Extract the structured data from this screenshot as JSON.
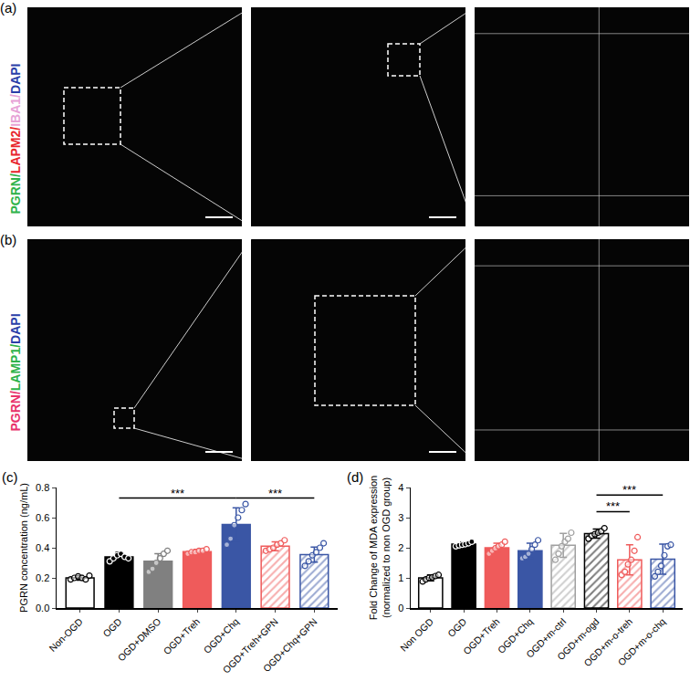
{
  "panels": [
    {
      "label": "(a)",
      "stain": [
        {
          "text": "PGRN/",
          "color": "#2fb34a"
        },
        {
          "text": "LAPM2/",
          "color": "#e8262b"
        },
        {
          "text": "IBA1/",
          "color": "#e7a3d6"
        },
        {
          "text": "DAPI",
          "color": "#2b3fa8"
        }
      ]
    },
    {
      "label": "(b)",
      "stain": [
        {
          "text": "PGRN/",
          "color": "#e8336b"
        },
        {
          "text": "LAMP1/",
          "color": "#2fb34a"
        },
        {
          "text": "DAPI",
          "color": "#2b3fa8"
        }
      ]
    }
  ],
  "chart_data": [
    {
      "type": "bar",
      "panel": "(c)",
      "y_label": [
        "PGRN concentration (ng/mL)"
      ],
      "categories": [
        "Non-OGD",
        "OGD",
        "OGD+DMSO",
        "OGD+Treh",
        "OGD+Chq",
        "OGD+Treh+GPN",
        "OGD+Chq+GPN"
      ],
      "values": [
        0.2,
        0.34,
        0.31,
        0.375,
        0.555,
        0.41,
        0.355
      ],
      "errors": [
        0.015,
        0.03,
        0.05,
        0.015,
        0.11,
        0.03,
        0.05
      ],
      "points": [
        [
          0.19,
          0.2,
          0.21,
          0.2,
          0.19,
          0.215
        ],
        [
          0.31,
          0.33,
          0.35,
          0.36,
          0.34,
          0.33
        ],
        [
          0.24,
          0.26,
          0.3,
          0.33,
          0.36,
          0.38
        ],
        [
          0.36,
          0.37,
          0.37,
          0.38,
          0.38,
          0.39
        ],
        [
          0.42,
          0.46,
          0.55,
          0.6,
          0.65,
          0.69
        ],
        [
          0.38,
          0.39,
          0.4,
          0.42,
          0.43,
          0.45
        ],
        [
          0.28,
          0.31,
          0.35,
          0.37,
          0.4,
          0.43
        ]
      ],
      "colors": [
        "#ffffff",
        "#000000",
        "#808080",
        "#ef5b5b",
        "#3a56a5",
        "#ef5b5b",
        "#3a56a5"
      ],
      "marker": [
        "solid",
        "solid",
        "solid",
        "solid",
        "solid",
        "hatched",
        "hatched"
      ],
      "ylim": [
        0,
        0.8
      ],
      "yticks": [
        {
          "value": 0,
          "label": "0.0"
        },
        {
          "value": 0.2,
          "label": "0.2"
        },
        {
          "value": 0.4,
          "label": "0.4"
        },
        {
          "value": 0.6,
          "label": "0.6"
        },
        {
          "value": 0.8,
          "label": "0.8"
        }
      ],
      "grid": false,
      "significance": [
        {
          "from": "OGD",
          "to": "OGD+Chq",
          "y": 0.73,
          "text": "***"
        },
        {
          "from": "OGD+Chq",
          "to": "OGD+Chq+GPN",
          "y": 0.73,
          "text": "***"
        }
      ]
    },
    {
      "type": "bar",
      "panel": "(d)",
      "y_label": [
        "Fold Change of MDA expression",
        "(normalized to non OGD group)"
      ],
      "categories": [
        "Non OGD",
        "OGD",
        "OGD+Treh",
        "OGD+Chq",
        "OGD+m-ctrl",
        "OGD+m-ogd",
        "OGD+m-o-treh",
        "OGD+m-o-chq"
      ],
      "values": [
        1.0,
        2.12,
        2.0,
        1.9,
        2.08,
        2.47,
        1.6,
        1.62
      ],
      "errors": [
        0.1,
        0.07,
        0.15,
        0.25,
        0.4,
        0.15,
        0.5,
        0.5
      ],
      "points": [
        [
          0.88,
          0.95,
          1.0,
          1.02,
          1.06,
          1.1
        ],
        [
          2.05,
          2.08,
          2.1,
          2.12,
          2.15,
          2.2
        ],
        [
          1.8,
          1.9,
          1.98,
          2.05,
          2.1,
          2.2
        ],
        [
          1.65,
          1.7,
          1.8,
          1.95,
          2.1,
          2.25
        ],
        [
          1.6,
          1.8,
          2.05,
          2.2,
          2.3,
          2.5
        ],
        [
          2.3,
          2.4,
          2.45,
          2.5,
          2.55,
          2.65
        ],
        [
          1.1,
          1.2,
          1.45,
          1.6,
          1.9,
          2.35
        ],
        [
          1.05,
          1.2,
          1.4,
          1.75,
          2.05,
          2.1
        ]
      ],
      "colors": [
        "#ffffff",
        "#000000",
        "#ef5b5b",
        "#3a56a5",
        "#a0a0a0",
        "#000000",
        "#ef5b5b",
        "#3a56a5"
      ],
      "marker": [
        "solid",
        "solid",
        "solid",
        "solid",
        "hatched",
        "hatched",
        "hatched",
        "hatched"
      ],
      "ylim": [
        0,
        4
      ],
      "yticks": [
        0,
        1,
        2,
        3,
        4
      ],
      "grid": false,
      "significance": [
        {
          "from": "OGD+m-ogd",
          "to": "OGD+m-o-treh",
          "y": 3.2,
          "text": "***"
        },
        {
          "from": "OGD+m-ogd",
          "to": "OGD+m-o-chq",
          "y": 3.75,
          "text": "***"
        }
      ]
    }
  ]
}
